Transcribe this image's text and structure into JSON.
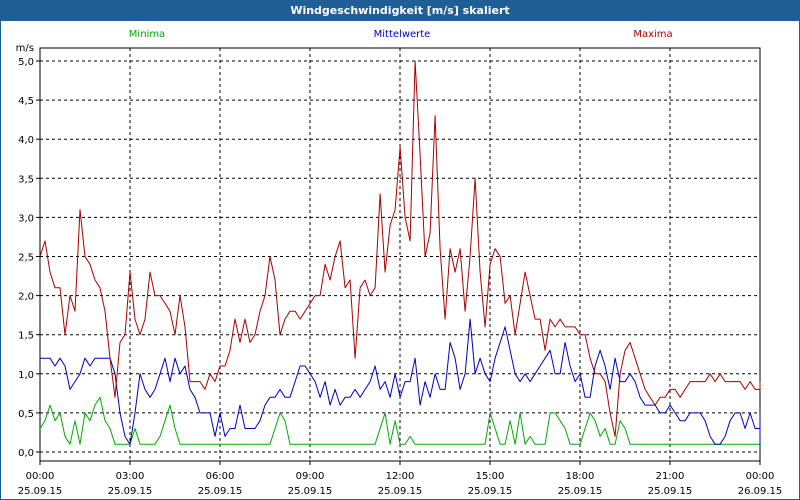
{
  "window": {
    "title": "Windgeschwindigkeit [m/s] skaliert"
  },
  "chart_data": {
    "type": "line",
    "title": "Windgeschwindigkeit [m/s] skaliert",
    "ylabel": "m/s",
    "xlabel": "",
    "ylim": [
      0,
      5
    ],
    "xlim": [
      0,
      24
    ],
    "grid": true,
    "legend_position": "top",
    "y_ticks": [
      "0,0",
      "0,5",
      "1,0",
      "1,5",
      "2,0",
      "2,5",
      "3,0",
      "3,5",
      "4,0",
      "4,5",
      "5,0"
    ],
    "x_ticks": [
      {
        "time": "00:00",
        "date": "25.09.15"
      },
      {
        "time": "03:00",
        "date": "25.09.15"
      },
      {
        "time": "06:00",
        "date": "25.09.15"
      },
      {
        "time": "09:00",
        "date": "25.09.15"
      },
      {
        "time": "12:00",
        "date": "25.09.15"
      },
      {
        "time": "15:00",
        "date": "25.09.15"
      },
      {
        "time": "18:00",
        "date": "25.09.15"
      },
      {
        "time": "21:00",
        "date": "25.09.15"
      },
      {
        "time": "00:00",
        "date": "26.09.15"
      }
    ],
    "x_step_hours": 0.1667,
    "series": [
      {
        "name": "Minima",
        "color": "#00aa00",
        "values": [
          0.3,
          0.4,
          0.6,
          0.4,
          0.5,
          0.2,
          0.1,
          0.4,
          0.1,
          0.5,
          0.4,
          0.6,
          0.7,
          0.4,
          0.3,
          0.1,
          0.1,
          0.1,
          0.1,
          0.3,
          0.1,
          0.1,
          0.1,
          0.1,
          0.2,
          0.4,
          0.6,
          0.3,
          0.1,
          0.1,
          0.1,
          0.1,
          0.1,
          0.1,
          0.1,
          0.1,
          0.1,
          0.1,
          0.1,
          0.1,
          0.1,
          0.1,
          0.1,
          0.1,
          0.1,
          0.1,
          0.1,
          0.3,
          0.5,
          0.4,
          0.1,
          0.1,
          0.1,
          0.1,
          0.1,
          0.1,
          0.1,
          0.1,
          0.1,
          0.1,
          0.1,
          0.1,
          0.1,
          0.1,
          0.1,
          0.1,
          0.1,
          0.1,
          0.3,
          0.5,
          0.1,
          0.4,
          0.1,
          0.1,
          0.2,
          0.1,
          0.1,
          0.1,
          0.1,
          0.1,
          0.1,
          0.1,
          0.1,
          0.1,
          0.1,
          0.1,
          0.1,
          0.1,
          0.1,
          0.1,
          0.5,
          0.3,
          0.1,
          0.1,
          0.4,
          0.1,
          0.5,
          0.1,
          0.2,
          0.1,
          0.1,
          0.1,
          0.5,
          0.5,
          0.4,
          0.3,
          0.1,
          0.1,
          0.1,
          0.3,
          0.5,
          0.4,
          0.2,
          0.3,
          0.1,
          0.1,
          0.4,
          0.3,
          0.1,
          0.1,
          0.1,
          0.1,
          0.1,
          0.1,
          0.1,
          0.1,
          0.1,
          0.1,
          0.1,
          0.1,
          0.1,
          0.1,
          0.1,
          0.1,
          0.1,
          0.1,
          0.1,
          0.1,
          0.1,
          0.1,
          0.1,
          0.1,
          0.1,
          0.1,
          0.1,
          0.1,
          0.1,
          0.1,
          0.1,
          0.1,
          0.1,
          0.1,
          0.1,
          0.1,
          0.1,
          0.1,
          0.1,
          0.1,
          0.1,
          0.1,
          0.1,
          0.1,
          0.1,
          0.1,
          0.1,
          0.1,
          0.1,
          0.1,
          0.1,
          0.1,
          0.1,
          0.1,
          0.1,
          0.3,
          0.1,
          0.1,
          0.1,
          0.1,
          0.1,
          0.1,
          0.1,
          0.1,
          0.1,
          0.1,
          0.1,
          0.1,
          0.1,
          0.1,
          0.1,
          0.1,
          0.1,
          0.1,
          0.1,
          0.1
        ]
      },
      {
        "name": "Mittelwerte",
        "color": "#0000bb",
        "values": [
          1.2,
          1.2,
          1.2,
          1.1,
          1.2,
          1.1,
          0.8,
          0.9,
          1.0,
          1.2,
          1.1,
          1.2,
          1.2,
          1.2,
          1.2,
          1.0,
          0.5,
          0.2,
          0.1,
          0.5,
          1.0,
          0.8,
          0.7,
          0.8,
          1.0,
          1.2,
          0.9,
          1.2,
          1.0,
          1.1,
          0.8,
          0.7,
          0.5,
          0.5,
          0.5,
          0.2,
          0.5,
          0.2,
          0.3,
          0.3,
          0.6,
          0.3,
          0.3,
          0.3,
          0.4,
          0.6,
          0.7,
          0.7,
          0.8,
          0.7,
          0.7,
          0.9,
          1.1,
          1.1,
          1.0,
          0.9,
          0.7,
          0.9,
          0.6,
          0.8,
          0.6,
          0.7,
          0.7,
          0.8,
          0.7,
          0.8,
          0.9,
          1.1,
          0.8,
          0.9,
          0.7,
          1.0,
          0.7,
          0.9,
          0.9,
          1.2,
          0.6,
          0.9,
          0.7,
          1.0,
          0.8,
          0.8,
          1.4,
          1.2,
          0.8,
          1.0,
          1.7,
          1.0,
          1.2,
          1.0,
          0.9,
          1.2,
          1.4,
          1.6,
          1.3,
          1.0,
          0.9,
          1.0,
          0.9,
          1.0,
          1.1,
          1.2,
          1.3,
          1.0,
          1.0,
          1.4,
          1.1,
          0.9,
          1.0,
          0.7,
          0.7,
          1.1,
          1.3,
          1.1,
          0.8,
          1.2,
          0.9,
          0.9,
          1.0,
          0.9,
          0.7,
          0.6,
          0.6,
          0.6,
          0.5,
          0.5,
          0.6,
          0.5,
          0.4,
          0.4,
          0.5,
          0.5,
          0.5,
          0.4,
          0.2,
          0.1,
          0.1,
          0.2,
          0.4,
          0.5,
          0.5,
          0.3,
          0.5,
          0.3,
          0.3,
          0.2,
          0.2,
          0.3,
          0.2,
          0.2,
          0.2,
          0.4,
          0.5,
          0.3,
          0.5,
          0.4,
          0.5,
          0.5,
          0.3,
          0.3,
          0.2,
          0.1,
          0.1,
          0.1,
          0.1,
          0.1,
          0.1,
          0.3,
          0.2,
          0.2,
          0.1,
          0.1,
          0.1,
          0.1,
          0.1,
          0.1,
          0.1,
          0.1,
          0.1,
          0.1,
          0.1,
          0.1,
          0.1,
          0.1,
          0.1,
          0.1,
          0.1,
          0.1,
          0.1,
          0.1,
          0.1,
          0.1
        ]
      },
      {
        "name": "Maxima",
        "color": "#aa0000",
        "values": [
          2.5,
          2.7,
          2.3,
          2.1,
          2.1,
          1.5,
          2.0,
          1.8,
          3.1,
          2.5,
          2.4,
          2.2,
          2.1,
          1.8,
          1.2,
          0.7,
          1.4,
          1.5,
          2.3,
          1.7,
          1.5,
          1.7,
          2.3,
          2.0,
          2.0,
          1.9,
          1.8,
          1.5,
          2.0,
          1.6,
          0.9,
          0.9,
          0.9,
          0.8,
          1.0,
          0.9,
          1.1,
          1.1,
          1.3,
          1.7,
          1.4,
          1.7,
          1.4,
          1.5,
          1.8,
          2.0,
          2.5,
          2.2,
          1.5,
          1.7,
          1.8,
          1.8,
          1.7,
          1.8,
          1.9,
          2.0,
          2.0,
          2.4,
          2.2,
          2.5,
          2.7,
          2.1,
          2.2,
          1.2,
          2.1,
          2.2,
          2.0,
          2.1,
          3.3,
          2.3,
          2.9,
          3.1,
          3.9,
          3.0,
          2.7,
          5.0,
          3.8,
          2.5,
          2.8,
          4.3,
          2.6,
          1.7,
          2.6,
          2.3,
          2.6,
          1.8,
          2.5,
          3.5,
          2.3,
          1.6,
          2.4,
          2.6,
          2.5,
          1.9,
          2.0,
          1.5,
          1.9,
          2.3,
          2.0,
          1.7,
          1.7,
          1.3,
          1.7,
          1.6,
          1.7,
          1.6,
          1.6,
          1.6,
          1.5,
          1.5,
          1.2,
          1.0,
          1.0,
          0.9,
          0.5,
          0.2,
          1.0,
          1.3,
          1.4,
          1.2,
          1.0,
          0.8,
          0.7,
          0.6,
          0.7,
          0.7,
          0.8,
          0.8,
          0.7,
          0.8,
          0.9,
          0.9,
          0.9,
          0.9,
          1.0,
          0.9,
          1.0,
          0.9,
          0.9,
          0.9,
          0.9,
          0.8,
          0.9,
          0.8,
          0.8,
          0.9,
          0.9,
          0.9,
          0.9,
          0.9,
          0.9,
          0.9,
          0.9,
          0.9,
          0.9,
          0.9,
          0.9,
          0.9,
          0.9,
          0.9,
          0.9,
          0.9,
          0.9,
          0.9,
          0.9,
          0.9,
          0.9,
          0.9,
          0.9,
          0.9,
          0.9,
          0.9,
          0.9,
          0.9,
          0.9,
          0.9,
          0.9,
          0.9,
          0.9,
          0.9,
          0.9,
          0.9,
          0.9,
          0.9,
          0.9,
          0.9,
          0.9,
          0.9,
          0.9,
          0.9,
          0.9,
          0.9,
          0.9,
          0.9,
          0.9,
          0.9,
          0.9,
          0.9,
          0.9,
          0.9
        ]
      }
    ]
  }
}
